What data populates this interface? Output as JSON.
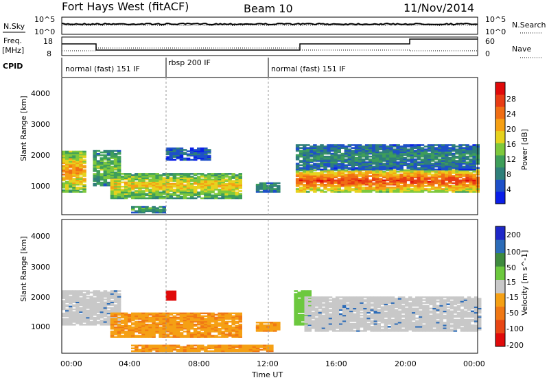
{
  "header": {
    "station": "Fort Hays West (fitACF)",
    "beam": "Beam 10",
    "date": "11/Nov/2014"
  },
  "noise_panel": {
    "left_label": "N.Sky",
    "left_ticks": [
      "10^5",
      "10^0"
    ],
    "right_ticks": [
      "10^5",
      "10^0"
    ],
    "right_label": "N.Search"
  },
  "freq_panel": {
    "left_label_1": "Freq.",
    "left_label_2": "[MHz]",
    "left_ticks": [
      "18",
      "8"
    ],
    "right_ticks": [
      "60",
      "0"
    ],
    "right_label": "Nave"
  },
  "cpid": {
    "label": "CPID",
    "segments": [
      {
        "label": "normal (fast) 151 IF",
        "start_h": 0,
        "end_h": 6
      },
      {
        "label": "rbsp 200 IF",
        "start_h": 6,
        "end_h": 12
      },
      {
        "label": "normal (fast) 151 IF",
        "start_h": 12,
        "end_h": 24
      }
    ]
  },
  "x_axis": {
    "label": "Time UT",
    "ticks": [
      "00:00",
      "04:00",
      "08:00",
      "12:00",
      "16:00",
      "20:00",
      "00:00"
    ]
  },
  "chart_data": [
    {
      "type": "heatmap",
      "title": "Power",
      "ylabel": "Slant Range [km]",
      "y_ticks": [
        "1000",
        "2000",
        "3000",
        "4000"
      ],
      "xlim_h": [
        0,
        24
      ],
      "ylim_km": [
        200,
        4500
      ],
      "colorbar": {
        "label": "Power [dB]",
        "ticks": [
          "4",
          "8",
          "12",
          "16",
          "20",
          "24",
          "28"
        ],
        "colors": [
          "#0a1ee8",
          "#1e50c8",
          "#2f7f7a",
          "#3e9e5a",
          "#7ec83c",
          "#e6d21e",
          "#f5a014",
          "#f06e14",
          "#e83c14",
          "#e00a0a"
        ]
      },
      "regions": [
        {
          "t0": 0.0,
          "t1": 1.3,
          "r0": 900,
          "r1": 2200,
          "level": 0.7
        },
        {
          "t0": 1.8,
          "t1": 3.3,
          "r0": 1100,
          "r1": 2200,
          "level": 0.45
        },
        {
          "t0": 2.8,
          "t1": 10.2,
          "r0": 700,
          "r1": 1500,
          "level": 0.6
        },
        {
          "t0": 4.0,
          "t1": 6.0,
          "r0": 250,
          "r1": 450,
          "level": 0.4
        },
        {
          "t0": 6.0,
          "t1": 8.5,
          "r0": 1900,
          "r1": 2300,
          "level": 0.2
        },
        {
          "t0": 11.2,
          "t1": 12.5,
          "r0": 900,
          "r1": 1200,
          "level": 0.35
        },
        {
          "t0": 13.5,
          "t1": 24.0,
          "r0": 900,
          "r1": 1600,
          "level": 0.85
        },
        {
          "t0": 13.5,
          "t1": 24.0,
          "r0": 1600,
          "r1": 2400,
          "level": 0.3
        }
      ]
    },
    {
      "type": "heatmap",
      "title": "Velocity",
      "ylabel": "Slant Range [km]",
      "y_ticks": [
        "1000",
        "2000",
        "3000",
        "4000"
      ],
      "xlim_h": [
        0,
        24
      ],
      "ylim_km": [
        200,
        4500
      ],
      "colorbar": {
        "label": "Velocity [m s^-1]",
        "ticks": [
          "200",
          "100",
          "50",
          "15",
          "-15",
          "-50",
          "-100",
          "-200"
        ],
        "colors": [
          "#1e28c8",
          "#2c6cb8",
          "#3e8a3e",
          "#6cc83e",
          "#c8c8c8",
          "#f5a014",
          "#f07814",
          "#e84614",
          "#e00a0a"
        ]
      },
      "regions": [
        {
          "t0": 0.0,
          "t1": 3.3,
          "r0": 1100,
          "r1": 2200,
          "value": "-15 to 15"
        },
        {
          "t0": 2.8,
          "t1": 10.2,
          "r0": 700,
          "r1": 1500,
          "value": "-50"
        },
        {
          "t0": 6.0,
          "t1": 6.6,
          "r0": 1900,
          "r1": 2200,
          "value": "-200"
        },
        {
          "t0": 4.0,
          "t1": 12.0,
          "r0": 250,
          "r1": 450,
          "value": "-50"
        },
        {
          "t0": 11.2,
          "t1": 12.5,
          "r0": 900,
          "r1": 1200,
          "value": "-50"
        },
        {
          "t0": 13.4,
          "t1": 14.2,
          "r0": 1100,
          "r1": 2200,
          "value": "50"
        },
        {
          "t0": 14.0,
          "t1": 24.0,
          "r0": 900,
          "r1": 2000,
          "value": "-15 to 15"
        }
      ]
    }
  ]
}
